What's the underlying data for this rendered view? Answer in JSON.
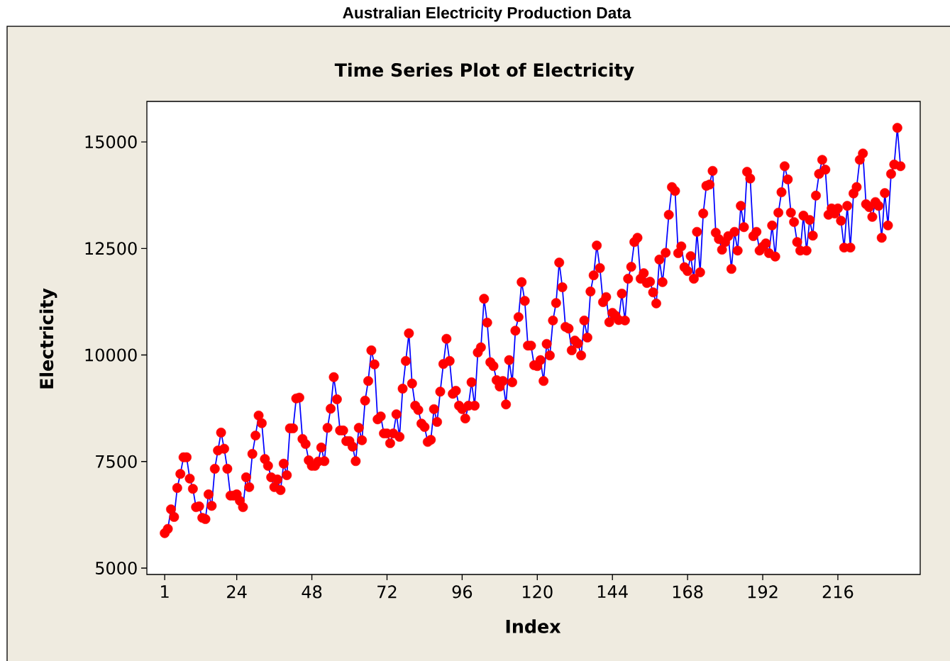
{
  "chart_data": {
    "type": "line",
    "title": "Australian Electricity Production Data",
    "subtitle": "Time Series Plot of Electricity",
    "xlabel": "Index",
    "ylabel": "Electricity",
    "xlim": [
      -4.7,
      242.3
    ],
    "ylim": [
      4850,
      15950
    ],
    "xticks": [
      1,
      24,
      48,
      72,
      96,
      120,
      144,
      168,
      192,
      216
    ],
    "yticks": [
      5000,
      7500,
      10000,
      12500,
      15000
    ],
    "marker": "circle",
    "line_style": "solid",
    "x": [
      1,
      2,
      3,
      4,
      5,
      6,
      7,
      8,
      9,
      10,
      11,
      12,
      13,
      14,
      15,
      16,
      17,
      18,
      19,
      20,
      21,
      22,
      23,
      24,
      25,
      26,
      27,
      28,
      29,
      30,
      31,
      32,
      33,
      34,
      35,
      36,
      37,
      38,
      39,
      40,
      41,
      42,
      43,
      44,
      45,
      46,
      47,
      48,
      49,
      50,
      51,
      52,
      53,
      54,
      55,
      56,
      57,
      58,
      59,
      60,
      61,
      62,
      63,
      64,
      65,
      66,
      67,
      68,
      69,
      70,
      71,
      72,
      73,
      74,
      75,
      76,
      77,
      78,
      79,
      80,
      81,
      82,
      83,
      84,
      85,
      86,
      87,
      88,
      89,
      90,
      91,
      92,
      93,
      94,
      95,
      96,
      97,
      98,
      99,
      100,
      101,
      102,
      103,
      104,
      105,
      106,
      107,
      108,
      109,
      110,
      111,
      112,
      113,
      114,
      115,
      116,
      117,
      118,
      119,
      120,
      121,
      122,
      123,
      124,
      125,
      126,
      127,
      128,
      129,
      130,
      131,
      132,
      133,
      134,
      135,
      136,
      137,
      138,
      139,
      140,
      141,
      142,
      143,
      144,
      145,
      146,
      147,
      148,
      149,
      150,
      151,
      152,
      153,
      154,
      155,
      156,
      157,
      158,
      159,
      160,
      161,
      162,
      163,
      164,
      165,
      166,
      167,
      168,
      169,
      170,
      171,
      172,
      173,
      174,
      175,
      176,
      177,
      178,
      179,
      180,
      181,
      182,
      183,
      184,
      185,
      186,
      187,
      188,
      189,
      190,
      191,
      192,
      193,
      194,
      195,
      196,
      197,
      198,
      199,
      200,
      201,
      202,
      203,
      204,
      205,
      206,
      207,
      208,
      209,
      210,
      211,
      212,
      213,
      214,
      215,
      216,
      217,
      218,
      219,
      220,
      221,
      222,
      223,
      224,
      225,
      226,
      227,
      228,
      229,
      230,
      231,
      232,
      233,
      234,
      235,
      236
    ],
    "series": [
      {
        "color": "#0000ff",
        "colors": [
          "#ff0000",
          "#ff0000",
          "#ff0000",
          "#ff0000",
          "#ff0000",
          "#ff0000",
          "#ff0000",
          "#ff0000",
          "#ff0000",
          "#ff0000",
          "#ff0000",
          "#ff0000",
          "#ff0000",
          "#ff0000",
          "#ff0000",
          "#ff0000",
          "#ff0000",
          "#ff0000",
          "#ff0000",
          "#ff0000",
          "#ff0000",
          "#ff0000",
          "#ff0000",
          "#ff0000",
          "#ff0000",
          "#ff0000",
          "#ff0000",
          "#ff0000",
          "#ff0000",
          "#ff0000",
          "#ff0000",
          "#ff0000",
          "#ff0000",
          "#ff0000",
          "#ff0000",
          "#ff0000",
          "#ff0000",
          "#ff0000",
          "#ff0000",
          "#ff0000",
          "#ff0000",
          "#ff0000",
          "#ff0000",
          "#ff0000",
          "#ff0000",
          "#ff0000",
          "#ff0000",
          "#ff0000",
          "#ff0000",
          "#ff0000",
          "#ff0000",
          "#ff0000",
          "#ff0000",
          "#ff0000",
          "#ff0000",
          "#ff0000",
          "#ff0000",
          "#ff0000",
          "#ff0000",
          "#ff0000",
          "#ff0000",
          "#ff0000",
          "#ff0000",
          "#ff0000",
          "#ff0000",
          "#ff0000",
          "#ff0000",
          "#ff0000",
          "#ff0000",
          "#ff0000",
          "#ff0000",
          "#ff0000",
          "#ff0000",
          "#ff0000",
          "#ff0000",
          "#ff0000",
          "#ff0000",
          "#ff0000",
          "#ff0000",
          "#ff0000",
          "#ff0000",
          "#ff0000",
          "#ff0000",
          "#ff0000",
          "#ff0000",
          "#ff0000",
          "#ff0000",
          "#ff0000",
          "#ff0000",
          "#ff0000",
          "#ff0000",
          "#ff0000",
          "#ff0000",
          "#ff0000",
          "#ff0000",
          "#ff0000",
          "#ff0000",
          "#ff0000",
          "#ff0000",
          "#ff0000",
          "#ff0000",
          "#ff0000",
          "#ff0000",
          "#ff0000",
          "#ff0000",
          "#ff0000",
          "#ff0000",
          "#ff0000",
          "#ff0000",
          "#ff0000",
          "#ff0000",
          "#ff0000",
          "#ff0000",
          "#ff0000",
          "#ff0000",
          "#ff0000",
          "#ff0000",
          "#ff0000",
          "#ff0000",
          "#ff0000",
          "#ff0000",
          "#ff0000",
          "#ff0000",
          "#ff0000",
          "#ff0000",
          "#ff0000",
          "#ff0000",
          "#ff0000",
          "#ff0000",
          "#ff0000",
          "#ff0000",
          "#ff0000",
          "#ff0000",
          "#ff0000",
          "#ff0000",
          "#ff0000",
          "#ff0000",
          "#ff0000",
          "#ff0000",
          "#ff0000",
          "#ff0000",
          "#ff0000",
          "#ff0000",
          "#ff0000",
          "#ff0000",
          "#ff0000",
          "#ff0000",
          "#ff0000",
          "#ff0000",
          "#ff0000",
          "#ff0000",
          "#ff0000",
          "#ff0000",
          "#ff0000",
          "#ff0000",
          "#ff0000",
          "#ff0000",
          "#ff0000",
          "#ff0000",
          "#ff0000",
          "#ff0000",
          "#ff0000",
          "#ff0000",
          "#ff0000",
          "#ff0000",
          "#ff0000",
          "#ff0000",
          "#ff0000",
          "#ff0000",
          "#ff0000",
          "#ff0000",
          "#ff0000",
          "#ff0000",
          "#ff0000",
          "#ff0000",
          "#ff0000",
          "#ff0000",
          "#ff0000",
          "#ff0000",
          "#ff0000",
          "#ff0000",
          "#ff0000",
          "#ff0000",
          "#ff0000",
          "#ff0000",
          "#ff0000",
          "#ff0000",
          "#ff0000",
          "#ff0000",
          "#ff0000",
          "#ff0000",
          "#ff0000",
          "#ff0000",
          "#ff0000",
          "#ff0000",
          "#ff0000",
          "#ff0000",
          "#ff0000",
          "#ff0000",
          "#ff0000",
          "#ff0000",
          "#ff0000",
          "#ff0000",
          "#ff0000",
          "#ff0000",
          "#ff0000",
          "#ff0000",
          "#ff0000",
          "#ff0000",
          "#ff0000",
          "#ff0000",
          "#ff0000",
          "#ff0000",
          "#ff0000",
          "#ff0000",
          "#ff0000",
          "#ff0000",
          "#ff0000",
          "#ff0000",
          "#ff0000",
          "#ff0000",
          "#ff0000",
          "#ff0000",
          "#ff0000",
          "#ff0000",
          "#ff0000",
          "#ff0000",
          "#ff0000",
          "#ff0000",
          "#ff0000",
          "#ff0000",
          "#ff0000",
          "#ff0000",
          "#ff0000",
          "#ff0000",
          "#ff0000"
        ],
        "values": [
          5820,
          5920,
          6380,
          6200,
          6880,
          7210,
          7600,
          7600,
          7100,
          6860,
          6430,
          6450,
          6180,
          6150,
          6730,
          6460,
          7330,
          7760,
          8180,
          7800,
          7330,
          6700,
          6700,
          6730,
          6580,
          6430,
          7130,
          6900,
          7680,
          8110,
          8580,
          8400,
          7560,
          7400,
          7130,
          6900,
          7080,
          6830,
          7450,
          7180,
          8280,
          8280,
          8980,
          9000,
          8030,
          7910,
          7530,
          7400,
          7400,
          7500,
          7830,
          7510,
          8290,
          8740,
          9480,
          8960,
          8230,
          8230,
          7980,
          7980,
          7850,
          7510,
          8290,
          8000,
          8930,
          9390,
          10110,
          9780,
          8490,
          8560,
          8160,
          8160,
          7930,
          8160,
          8610,
          8080,
          9210,
          9860,
          10510,
          9330,
          8810,
          8710,
          8390,
          8310,
          7960,
          8010,
          8730,
          8430,
          9140,
          9790,
          10380,
          9860,
          9090,
          9160,
          8810,
          8730,
          8510,
          8810,
          9360,
          8810,
          10060,
          10180,
          11320,
          10760,
          9830,
          9740,
          9410,
          9260,
          9390,
          8840,
          9880,
          9360,
          10570,
          10890,
          11710,
          11270,
          10220,
          10220,
          9760,
          9740,
          9880,
          9390,
          10260,
          9990,
          10810,
          11220,
          12170,
          11590,
          10660,
          10620,
          10110,
          10340,
          10270,
          9990,
          10810,
          10410,
          11490,
          11870,
          12570,
          12040,
          11240,
          11360,
          10770,
          10990,
          10920,
          10820,
          11440,
          10810,
          11790,
          12070,
          12650,
          12750,
          11790,
          11920,
          11690,
          11720,
          11470,
          11210,
          12240,
          11710,
          12400,
          13290,
          13940,
          13850,
          12390,
          12550,
          12060,
          11970,
          12320,
          11790,
          12890,
          11940,
          13320,
          13970,
          14000,
          14320,
          12870,
          12720,
          12470,
          12650,
          12790,
          12020,
          12890,
          12450,
          13500,
          13000,
          14300,
          14140,
          12790,
          12890,
          12450,
          12540,
          12620,
          12390,
          13040,
          12310,
          13340,
          13820,
          14430,
          14120,
          13340,
          13120,
          12650,
          12450,
          13270,
          12450,
          13170,
          12800,
          13740,
          14250,
          14580,
          14350,
          13290,
          13440,
          13320,
          13440,
          13150,
          12520,
          13500,
          12520,
          13790,
          13940,
          14580,
          14730,
          13540,
          13470,
          13240,
          13590,
          13500,
          12750,
          13800,
          13040,
          14250,
          14470,
          15330,
          14430
        ]
      }
    ]
  }
}
